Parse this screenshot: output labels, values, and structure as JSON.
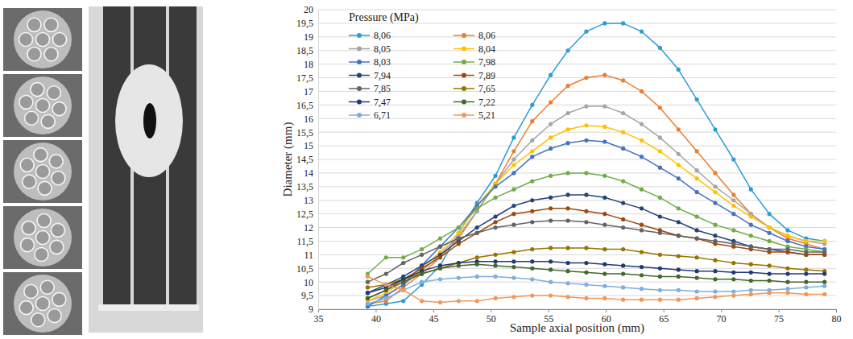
{
  "chart_data": {
    "type": "line",
    "x_label": "Sample axial position (mm)",
    "y_label": "Diameter (mm)",
    "legend_title": "Pressure (MPa)",
    "legend": "top-left",
    "grid": true,
    "marker": "circle",
    "line_style": "solid",
    "xlim": [
      35,
      80
    ],
    "xticks": [
      35,
      40,
      45,
      50,
      55,
      60,
      65,
      70,
      75,
      80
    ],
    "ylim": [
      9,
      20
    ],
    "yticks": [
      9,
      {
        "value": 9.5,
        "label": "9,5"
      },
      10,
      {
        "value": 10.5,
        "label": "10,5"
      },
      11,
      {
        "value": 11.5,
        "label": "11,5"
      },
      12,
      {
        "value": 12.5,
        "label": "12,5"
      },
      13,
      {
        "value": 13.5,
        "label": "13,5"
      },
      14,
      {
        "value": 14.5,
        "label": "14,5"
      },
      15,
      {
        "value": 15.5,
        "label": "15,5"
      },
      16,
      {
        "value": 16.5,
        "label": "16,5"
      },
      17,
      {
        "value": 17.5,
        "label": "17,5"
      },
      18,
      {
        "value": 18.5,
        "label": "18,5"
      },
      19,
      {
        "value": 19.5,
        "label": "19,5"
      },
      20
    ],
    "x": [
      39.3,
      40.9,
      42.4,
      44.0,
      45.6,
      47.2,
      48.8,
      50.4,
      52.0,
      53.6,
      55.2,
      56.7,
      58.3,
      59.9,
      61.5,
      63.1,
      64.7,
      66.3,
      67.9,
      69.5,
      71.1,
      72.6,
      74.2,
      75.8,
      77.4,
      79.0
    ],
    "series": [
      {
        "name": "8,06",
        "color": "#2e9bd6",
        "values": [
          9.1,
          9.2,
          9.3,
          9.9,
          10.6,
          11.8,
          12.9,
          13.9,
          15.3,
          16.5,
          17.6,
          18.5,
          19.2,
          19.5,
          19.5,
          19.2,
          18.6,
          17.8,
          16.7,
          15.6,
          14.5,
          13.4,
          12.5,
          11.9,
          11.6,
          11.5
        ]
      },
      {
        "name": "8,06",
        "color": "#ed7d31",
        "values": [
          9.2,
          9.3,
          9.8,
          10.3,
          10.9,
          11.6,
          12.6,
          13.6,
          14.8,
          15.9,
          16.6,
          17.2,
          17.5,
          17.6,
          17.4,
          17.0,
          16.4,
          15.6,
          14.8,
          14.0,
          13.2,
          12.5,
          12.0,
          11.6,
          11.4,
          11.2
        ]
      },
      {
        "name": "8,05",
        "color": "#a5a5a5",
        "values": [
          9.3,
          9.5,
          9.9,
          10.4,
          11.0,
          11.7,
          12.6,
          13.6,
          14.5,
          15.2,
          15.8,
          16.2,
          16.45,
          16.45,
          16.2,
          15.8,
          15.3,
          14.7,
          14.1,
          13.5,
          13.0,
          12.5,
          12.0,
          11.7,
          11.5,
          11.4
        ]
      },
      {
        "name": "8,04",
        "color": "#ffc000",
        "values": [
          9.3,
          9.6,
          10.0,
          10.5,
          11.1,
          11.8,
          12.8,
          13.6,
          14.3,
          14.8,
          15.3,
          15.6,
          15.75,
          15.7,
          15.5,
          15.2,
          14.8,
          14.3,
          13.8,
          13.3,
          12.8,
          12.4,
          12.0,
          11.7,
          11.5,
          11.5
        ]
      },
      {
        "name": "8,03",
        "color": "#4472c4",
        "values": [
          9.1,
          9.5,
          9.9,
          10.6,
          11.3,
          12.0,
          12.8,
          13.5,
          14.0,
          14.6,
          14.9,
          15.1,
          15.2,
          15.15,
          14.9,
          14.6,
          14.2,
          13.8,
          13.3,
          12.9,
          12.5,
          12.1,
          11.8,
          11.5,
          11.3,
          11.2
        ]
      },
      {
        "name": "7,98",
        "color": "#70ad47",
        "values": [
          10.3,
          10.9,
          10.9,
          11.2,
          11.6,
          12.0,
          12.7,
          13.1,
          13.4,
          13.7,
          13.9,
          14.0,
          14.0,
          13.9,
          13.7,
          13.4,
          13.1,
          12.7,
          12.4,
          12.1,
          11.9,
          11.7,
          11.5,
          11.3,
          11.2,
          11.1
        ]
      },
      {
        "name": "7,94",
        "color": "#264478",
        "values": [
          9.6,
          9.9,
          10.2,
          10.6,
          11.0,
          11.5,
          12.0,
          12.4,
          12.8,
          13.0,
          13.1,
          13.2,
          13.2,
          13.1,
          12.9,
          12.7,
          12.4,
          12.2,
          11.9,
          11.7,
          11.5,
          11.3,
          11.2,
          11.1,
          11.0,
          11.0
        ]
      },
      {
        "name": "7,89",
        "color": "#9e480e",
        "values": [
          9.4,
          9.7,
          10.1,
          10.5,
          10.9,
          11.4,
          11.8,
          12.2,
          12.5,
          12.6,
          12.7,
          12.7,
          12.6,
          12.5,
          12.3,
          12.1,
          11.9,
          11.7,
          11.6,
          11.4,
          11.3,
          11.2,
          11.1,
          11.1,
          11.0,
          11.0
        ]
      },
      {
        "name": "7,85",
        "color": "#636363",
        "values": [
          10.0,
          10.3,
          10.7,
          11.0,
          11.3,
          11.6,
          11.8,
          12.0,
          12.1,
          12.2,
          12.25,
          12.25,
          12.2,
          12.1,
          12.0,
          11.9,
          11.8,
          11.7,
          11.6,
          11.5,
          11.4,
          11.3,
          11.2,
          11.2,
          11.1,
          11.1
        ]
      },
      {
        "name": "7,65",
        "color": "#997300",
        "values": [
          9.8,
          9.9,
          10.1,
          10.3,
          10.5,
          10.7,
          10.9,
          11.0,
          11.1,
          11.2,
          11.25,
          11.25,
          11.25,
          11.2,
          11.2,
          11.1,
          11.0,
          10.95,
          10.9,
          10.8,
          10.7,
          10.65,
          10.6,
          10.5,
          10.45,
          10.4
        ]
      },
      {
        "name": "7,47",
        "color": "#1f3a78",
        "values": [
          9.6,
          9.8,
          10.1,
          10.4,
          10.6,
          10.7,
          10.75,
          10.75,
          10.75,
          10.75,
          10.75,
          10.7,
          10.7,
          10.65,
          10.6,
          10.55,
          10.5,
          10.45,
          10.4,
          10.4,
          10.35,
          10.35,
          10.3,
          10.3,
          10.3,
          10.3
        ]
      },
      {
        "name": "7,22",
        "color": "#43682b",
        "values": [
          9.4,
          9.7,
          10.0,
          10.3,
          10.5,
          10.6,
          10.65,
          10.6,
          10.55,
          10.5,
          10.45,
          10.4,
          10.35,
          10.3,
          10.3,
          10.25,
          10.2,
          10.2,
          10.15,
          10.1,
          10.1,
          10.05,
          10.05,
          10.0,
          10.0,
          10.0
        ]
      },
      {
        "name": "6,71",
        "color": "#7cafdd",
        "values": [
          9.2,
          9.4,
          9.7,
          10.0,
          10.1,
          10.15,
          10.2,
          10.2,
          10.15,
          10.1,
          10.0,
          9.95,
          9.9,
          9.85,
          9.8,
          9.75,
          9.7,
          9.7,
          9.65,
          9.65,
          9.65,
          9.7,
          9.7,
          9.75,
          9.8,
          9.85
        ]
      },
      {
        "name": "5,21",
        "color": "#f1975a",
        "values": [
          10.2,
          9.9,
          9.7,
          9.3,
          9.25,
          9.3,
          9.3,
          9.4,
          9.45,
          9.5,
          9.5,
          9.45,
          9.4,
          9.4,
          9.35,
          9.35,
          9.35,
          9.35,
          9.4,
          9.45,
          9.5,
          9.55,
          9.6,
          9.6,
          9.55,
          9.55
        ]
      }
    ]
  }
}
